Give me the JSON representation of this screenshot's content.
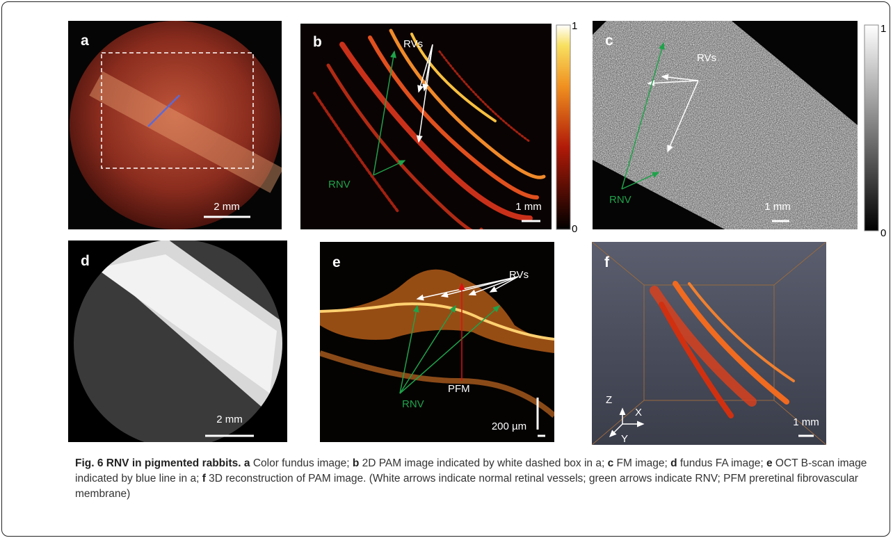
{
  "panels": [
    {
      "label": "a",
      "scale_bar": "2 mm"
    },
    {
      "label": "b",
      "scale_bar": "1 mm",
      "annotations": [
        "RVs",
        "RNV"
      ],
      "colorbar": {
        "max": 1,
        "min": 0
      }
    },
    {
      "label": "c",
      "scale_bar": "1 mm",
      "annotations": [
        "RVs",
        "RNV"
      ],
      "colorbar": {
        "max": 1,
        "min": 0
      }
    },
    {
      "label": "d",
      "scale_bar": "2 mm"
    },
    {
      "label": "e",
      "scale_bar": "200 µm",
      "annotations": [
        "RVs",
        "RNV",
        "PFM"
      ]
    },
    {
      "label": "f",
      "scale_bar": "1 mm",
      "axes": [
        "Z",
        "X",
        "Y"
      ]
    }
  ],
  "caption": {
    "heading": "Fig. 6 RNV in pigmented rabbits.",
    "items": [
      {
        "panel": "a",
        "text": "Color fundus image;"
      },
      {
        "panel": "b",
        "text": "2D PAM image indicated by white dashed box in a;"
      },
      {
        "panel": "c",
        "text": "FM image;"
      },
      {
        "panel": "d",
        "text": "fundus FA image;"
      },
      {
        "panel": "e",
        "text": "OCT B-scan image indicated by blue line in a;"
      },
      {
        "panel": "f",
        "text": "3D reconstruction of PAM image. (White arrows indicate normal retinal vessels; green arrows indicate RNV; PFM preretinal fibrovascular membrane)"
      }
    ]
  }
}
